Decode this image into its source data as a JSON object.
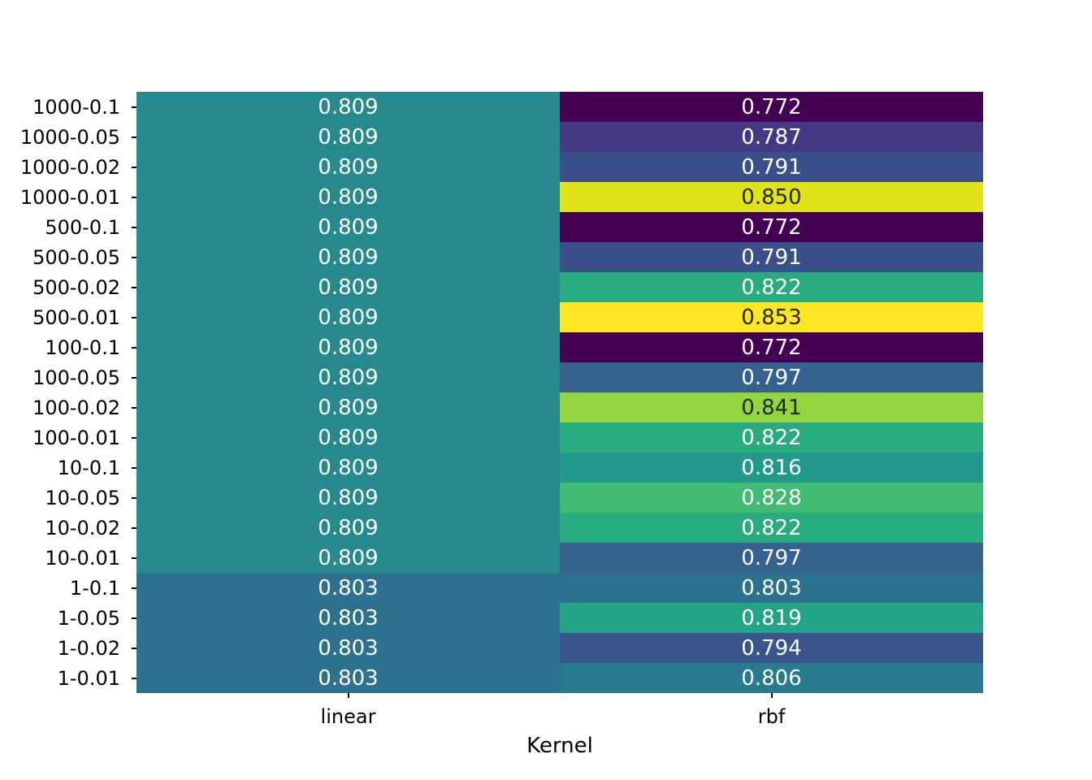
{
  "chart_data": {
    "type": "heatmap",
    "title": "",
    "xlabel": "Kernel",
    "ylabel": "",
    "colormap": "viridis",
    "color_scale": {
      "min": 0.772,
      "max": 0.853
    },
    "legend": "none",
    "grid": false,
    "columns": [
      "linear",
      "rbf"
    ],
    "rows": [
      "1000-0.1",
      "1000-0.05",
      "1000-0.02",
      "1000-0.01",
      "500-0.1",
      "500-0.05",
      "500-0.02",
      "500-0.01",
      "100-0.1",
      "100-0.05",
      "100-0.02",
      "100-0.01",
      "10-0.1",
      "10-0.05",
      "10-0.02",
      "10-0.01",
      "1-0.1",
      "1-0.05",
      "1-0.02",
      "1-0.01"
    ],
    "values": [
      [
        0.809,
        0.772
      ],
      [
        0.809,
        0.787
      ],
      [
        0.809,
        0.791
      ],
      [
        0.809,
        0.85
      ],
      [
        0.809,
        0.772
      ],
      [
        0.809,
        0.791
      ],
      [
        0.809,
        0.822
      ],
      [
        0.809,
        0.853
      ],
      [
        0.809,
        0.772
      ],
      [
        0.809,
        0.797
      ],
      [
        0.809,
        0.841
      ],
      [
        0.809,
        0.822
      ],
      [
        0.809,
        0.816
      ],
      [
        0.809,
        0.828
      ],
      [
        0.809,
        0.822
      ],
      [
        0.809,
        0.797
      ],
      [
        0.803,
        0.803
      ],
      [
        0.803,
        0.819
      ],
      [
        0.803,
        0.794
      ],
      [
        0.803,
        0.806
      ]
    ],
    "cell_labels": [
      [
        "0.809",
        "0.772"
      ],
      [
        "0.809",
        "0.787"
      ],
      [
        "0.809",
        "0.791"
      ],
      [
        "0.809",
        "0.850"
      ],
      [
        "0.809",
        "0.772"
      ],
      [
        "0.809",
        "0.791"
      ],
      [
        "0.809",
        "0.822"
      ],
      [
        "0.809",
        "0.853"
      ],
      [
        "0.809",
        "0.772"
      ],
      [
        "0.809",
        "0.797"
      ],
      [
        "0.809",
        "0.841"
      ],
      [
        "0.809",
        "0.822"
      ],
      [
        "0.809",
        "0.816"
      ],
      [
        "0.809",
        "0.828"
      ],
      [
        "0.809",
        "0.822"
      ],
      [
        "0.809",
        "0.797"
      ],
      [
        "0.803",
        "0.803"
      ],
      [
        "0.803",
        "0.819"
      ],
      [
        "0.803",
        "0.794"
      ],
      [
        "0.803",
        "0.806"
      ]
    ],
    "value_colors": {
      "0.772": "#440154",
      "0.787": "#443a83",
      "0.791": "#3b508a",
      "0.794": "#3a548c",
      "0.797": "#35618f",
      "0.803": "#2c718e",
      "0.806": "#287a8e",
      "0.809": "#26898e",
      "0.816": "#219a8b",
      "0.819": "#23a486",
      "0.822": "#29ab80",
      "0.828": "#42bb72",
      "0.841": "#93d53e",
      "0.850": "#dfe318",
      "0.853": "#fce724"
    },
    "dark_text_values": [
      "0.841",
      "0.850",
      "0.853"
    ],
    "cell_text_light": "#ffffff",
    "cell_text_dark": "#262626"
  }
}
